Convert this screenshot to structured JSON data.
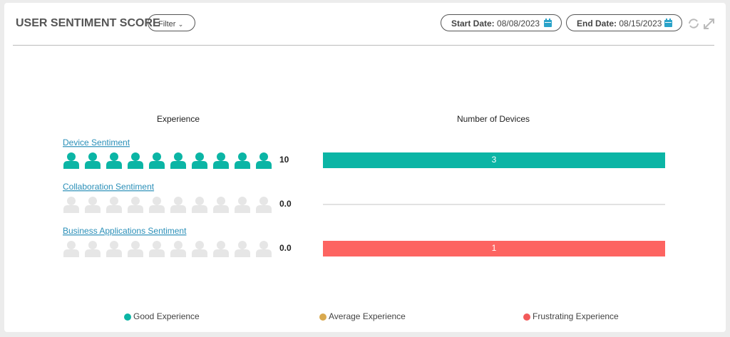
{
  "header": {
    "title": "USER SENTIMENT SCORE",
    "filter": "Filter",
    "start_label": "Start Date:",
    "start_value": "08/08/2023",
    "end_label": "End Date:",
    "end_value": "08/15/2023"
  },
  "columns": {
    "experience": "Experience",
    "devices": "Number of Devices"
  },
  "icons_per_row": 10,
  "rows": [
    {
      "label": "Device Sentiment",
      "score": 10,
      "score_label": "10",
      "devices": [
        {
          "value": 3,
          "color": "#0bb5a5"
        }
      ]
    },
    {
      "label": "Collaboration Sentiment",
      "score": 0,
      "score_label": "0.0",
      "devices": []
    },
    {
      "label": "Business Applications Sentiment",
      "score": 0,
      "score_label": "0.0",
      "devices": [
        {
          "value": 1,
          "color": "#fd6461"
        }
      ]
    }
  ],
  "legend": [
    {
      "label": "Good Experience",
      "color": "#0bb5a5"
    },
    {
      "label": "Average Experience",
      "color": "#d9a94e"
    },
    {
      "label": "Frustrating Experience",
      "color": "#f25a5a"
    }
  ]
}
